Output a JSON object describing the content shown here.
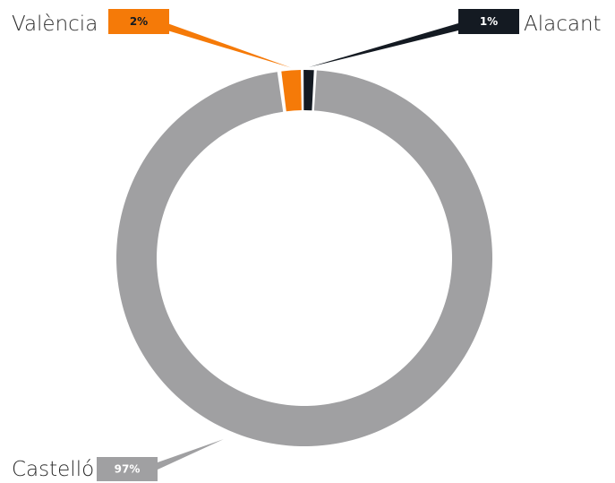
{
  "chart_data": {
    "type": "pie",
    "variant": "donut",
    "title": "",
    "categories": [
      "Castelló",
      "València",
      "Alacant"
    ],
    "values": [
      97,
      2,
      1
    ],
    "value_labels": [
      "97%",
      "2%",
      "1%"
    ],
    "colors": [
      "#a0a0a2",
      "#f57a08",
      "#141a22"
    ],
    "label_text_colors": [
      "#ffffff",
      "#141a22",
      "#ffffff"
    ],
    "legend": "none"
  }
}
